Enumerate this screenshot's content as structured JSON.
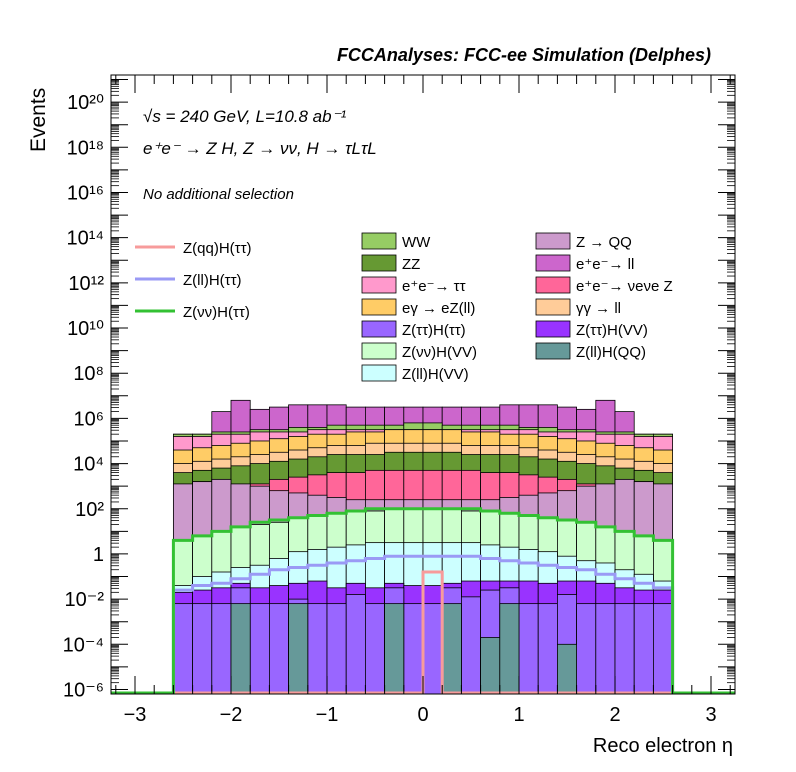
{
  "header": {
    "title": "FCCAnalyses: FCC-ee Simulation (Delphes)",
    "energy": "√s = 240 GeV, L=10.8 ab⁻¹",
    "process": "e⁺e⁻ → Z H, Z → νν, H → τLτL",
    "selection": "No additional selection"
  },
  "axes": {
    "xlabel": "Reco electron η",
    "ylabel": "Events",
    "xlim": [
      -3.25,
      3.25
    ],
    "ylim_log10": [
      -6.2,
      21.2
    ],
    "x_ticks": [
      "−3",
      "−2",
      "−1",
      "0",
      "1",
      "2",
      "3"
    ],
    "y_ticks": [
      "10⁻⁶",
      "10⁻⁴",
      "10⁻²",
      "1",
      "10²",
      "10⁴",
      "10⁶",
      "10⁸",
      "10¹⁰",
      "10¹²",
      "10¹⁴",
      "10¹⁶",
      "10¹⁸",
      "10²⁰"
    ]
  },
  "legend_signal": [
    {
      "label": "Z(qq)H(ττ)",
      "color": "#f79b9b"
    },
    {
      "label": "Z(ll)H(ττ)",
      "color": "#9a9af5"
    },
    {
      "label": "Z(νν)H(ττ)",
      "color": "#33c133"
    }
  ],
  "legend_bkg": [
    {
      "label": "WW",
      "color": "#96cd64"
    },
    {
      "label": "Z → QQ",
      "color": "#cc9acc"
    },
    {
      "label": "ZZ",
      "color": "#669933"
    },
    {
      "label": "e⁺e⁻→ ll",
      "color": "#cc66cc"
    },
    {
      "label": "e⁺e⁻→ ττ",
      "color": "#ff99cc"
    },
    {
      "label": "e⁺e⁻→ νeνe Z",
      "color": "#ff6699"
    },
    {
      "label": "eγ → eZ(ll)",
      "color": "#ffcc66"
    },
    {
      "label": "γγ → ll",
      "color": "#ffcc99"
    },
    {
      "label": "Z(ττ)H(ττ)",
      "color": "#9966ff"
    },
    {
      "label": "Z(ττ)H(VV)",
      "color": "#9933ff"
    },
    {
      "label": "Z(νν)H(VV)",
      "color": "#ccffcc"
    },
    {
      "label": "Z(ll)H(QQ)",
      "color": "#669999"
    },
    {
      "label": "Z(ll)H(VV)",
      "color": "#ccffff"
    }
  ],
  "chart_data": {
    "type": "area",
    "log_y": true,
    "title": "FCCAnalyses: FCC-ee Simulation (Delphes)",
    "xlabel": "Reco electron η",
    "ylabel": "Events",
    "bin_edges": [
      -2.6,
      -2.4,
      -2.2,
      -2.0,
      -1.8,
      -1.6,
      -1.4,
      -1.2,
      -1.0,
      -0.8,
      -0.6,
      -0.4,
      -0.2,
      0.0,
      0.2,
      0.4,
      0.6,
      0.8,
      1.0,
      1.2,
      1.4,
      1.6,
      1.8,
      2.0,
      2.2,
      2.4,
      2.6
    ],
    "stack_tops_log10": [
      {
        "name": "Z(ll)H(QQ)",
        "values": [
          -6.2,
          -6.2,
          -6.2,
          -2.2,
          -6.2,
          -6.2,
          -2.2,
          -6.2,
          -6.2,
          -6.2,
          -6.2,
          -2.2,
          -6.2,
          -6.2,
          -2.2,
          -6.2,
          -3.7,
          -2.2,
          -6.2,
          -6.2,
          -4.0,
          -6.2,
          -6.2,
          -6.2,
          -6.2,
          -6.2
        ]
      },
      {
        "name": "Z(ττ)H(ττ)",
        "values": [
          -2.2,
          -2.2,
          -2.2,
          -1.5,
          -2.2,
          -2.2,
          -2.0,
          -2.2,
          -2.2,
          -1.8,
          -2.2,
          -1.5,
          -2.2,
          -2.2,
          -1.5,
          -1.9,
          -1.6,
          -1.5,
          -2.2,
          -2.2,
          -1.8,
          -2.2,
          -2.2,
          -2.2,
          -2.2,
          -2.2
        ]
      },
      {
        "name": "Z(ττ)H(VV)",
        "values": [
          -1.7,
          -1.6,
          -1.5,
          -1.3,
          -1.5,
          -1.4,
          -1.3,
          -1.2,
          -1.5,
          -1.3,
          -1.5,
          -1.3,
          -1.4,
          -1.4,
          -1.3,
          -1.2,
          -1.2,
          -1.2,
          -1.2,
          -1.3,
          -1.2,
          -1.2,
          -1.3,
          -1.5,
          -1.6,
          -1.6
        ]
      },
      {
        "name": "Z(ll)H(VV)",
        "values": [
          -1.4,
          -1.0,
          -0.8,
          -0.6,
          -0.5,
          -0.2,
          0.1,
          0.2,
          0.3,
          0.4,
          0.5,
          0.5,
          0.5,
          0.5,
          0.5,
          0.5,
          0.4,
          0.3,
          0.2,
          0.1,
          -0.1,
          -0.3,
          -0.4,
          -0.7,
          -0.9,
          -1.2
        ]
      },
      {
        "name": "Z(νν)H(VV)",
        "values": [
          0.6,
          0.8,
          1.0,
          1.2,
          1.3,
          1.4,
          1.6,
          1.7,
          1.8,
          1.9,
          1.9,
          2.0,
          2.0,
          2.0,
          2.0,
          1.9,
          1.9,
          1.8,
          1.7,
          1.6,
          1.5,
          1.4,
          1.2,
          1.0,
          0.8,
          0.6
        ]
      },
      {
        "name": "Z → QQ",
        "values": [
          3.1,
          3.2,
          3.3,
          3.1,
          3.0,
          2.8,
          2.7,
          2.6,
          2.5,
          2.4,
          2.4,
          2.4,
          2.4,
          2.4,
          2.4,
          2.4,
          2.4,
          2.5,
          2.6,
          2.7,
          2.8,
          3.0,
          3.1,
          3.3,
          3.2,
          3.1
        ]
      },
      {
        "name": "e⁺e⁻→ νeνe Z",
        "values": [
          3.1,
          3.2,
          3.3,
          3.1,
          3.1,
          3.3,
          3.4,
          3.5,
          3.6,
          3.6,
          3.7,
          3.7,
          3.7,
          3.7,
          3.7,
          3.7,
          3.6,
          3.6,
          3.5,
          3.4,
          3.3,
          3.1,
          3.1,
          3.3,
          3.2,
          3.1
        ]
      },
      {
        "name": "ZZ",
        "values": [
          3.6,
          3.7,
          3.8,
          3.9,
          4.0,
          4.1,
          4.2,
          4.3,
          4.4,
          4.4,
          4.4,
          4.5,
          4.5,
          4.5,
          4.5,
          4.4,
          4.4,
          4.4,
          4.3,
          4.2,
          4.1,
          4.0,
          3.9,
          3.8,
          3.7,
          3.6
        ]
      },
      {
        "name": "γγ → ll",
        "values": [
          4.0,
          4.1,
          4.2,
          4.3,
          4.4,
          4.5,
          4.6,
          4.7,
          4.8,
          4.8,
          4.9,
          4.9,
          4.9,
          4.9,
          4.9,
          4.8,
          4.8,
          4.8,
          4.7,
          4.6,
          4.5,
          4.4,
          4.3,
          4.2,
          4.1,
          4.0
        ]
      },
      {
        "name": "eγ → eZ(ll)",
        "values": [
          4.6,
          4.7,
          4.8,
          4.9,
          5.0,
          5.1,
          5.2,
          5.3,
          5.3,
          5.4,
          5.4,
          5.5,
          5.5,
          5.5,
          5.5,
          5.4,
          5.4,
          5.3,
          5.3,
          5.2,
          5.1,
          5.0,
          4.9,
          4.8,
          4.7,
          4.6
        ]
      },
      {
        "name": "e⁺e⁻→ ττ",
        "values": [
          5.2,
          5.2,
          5.3,
          5.3,
          5.4,
          5.4,
          5.4,
          5.5,
          5.5,
          5.5,
          5.5,
          5.5,
          5.5,
          5.5,
          5.5,
          5.5,
          5.5,
          5.5,
          5.5,
          5.4,
          5.4,
          5.4,
          5.3,
          5.3,
          5.2,
          5.2
        ]
      },
      {
        "name": "WW",
        "values": [
          5.3,
          5.3,
          5.4,
          5.4,
          5.5,
          5.5,
          5.6,
          5.6,
          5.7,
          5.7,
          5.7,
          5.7,
          5.8,
          5.8,
          5.7,
          5.7,
          5.7,
          5.7,
          5.6,
          5.6,
          5.5,
          5.5,
          5.4,
          5.4,
          5.3,
          5.3
        ]
      },
      {
        "name": "e⁺e⁻→ ll",
        "values": [
          5.3,
          5.3,
          6.3,
          6.8,
          6.4,
          6.5,
          6.6,
          6.6,
          6.6,
          6.5,
          6.5,
          6.5,
          6.5,
          6.5,
          6.5,
          6.5,
          6.5,
          6.6,
          6.6,
          6.6,
          6.5,
          6.4,
          6.8,
          6.3,
          5.3,
          5.3
        ]
      }
    ],
    "signal_lines_log10": [
      {
        "name": "Z(qq)H(ττ)",
        "values": [
          -6.2,
          -6.2,
          -6.2,
          -6.2,
          -6.2,
          -6.2,
          -6.2,
          -6.2,
          -6.2,
          -6.2,
          -6.2,
          -6.2,
          -6.2,
          -0.8,
          -6.2,
          -6.2,
          -6.2,
          -6.2,
          -6.2,
          -6.2,
          -6.2,
          -6.2,
          -6.2,
          -6.2,
          -6.2,
          -6.2
        ]
      },
      {
        "name": "Z(ll)H(ττ)",
        "values": [
          -1.6,
          -1.4,
          -1.3,
          -1.1,
          -0.9,
          -0.7,
          -0.6,
          -0.5,
          -0.4,
          -0.3,
          -0.2,
          -0.1,
          -0.1,
          -0.1,
          -0.1,
          -0.1,
          -0.2,
          -0.3,
          -0.4,
          -0.5,
          -0.6,
          -0.7,
          -0.9,
          -1.1,
          -1.3,
          -1.5
        ]
      },
      {
        "name": "Z(νν)H(ττ)",
        "values": [
          0.6,
          0.8,
          1.0,
          1.2,
          1.4,
          1.5,
          1.6,
          1.7,
          1.8,
          1.9,
          2.0,
          2.0,
          2.0,
          2.0,
          2.0,
          2.0,
          1.9,
          1.8,
          1.7,
          1.6,
          1.5,
          1.4,
          1.2,
          1.0,
          0.8,
          0.6
        ]
      }
    ]
  }
}
